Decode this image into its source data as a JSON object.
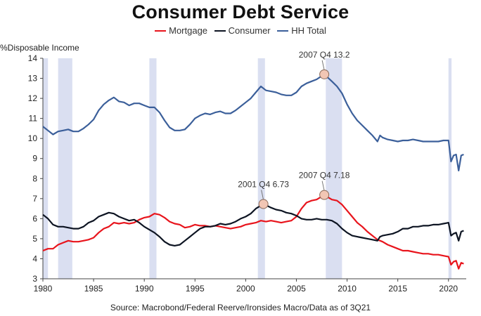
{
  "chart_data": {
    "type": "line",
    "title": "Consumer Debt Service",
    "ylabel": "%Disposable Income",
    "xlim": [
      1980,
      2021.75
    ],
    "ylim": [
      3,
      14
    ],
    "y_ticks": [
      3,
      4,
      5,
      6,
      7,
      8,
      9,
      10,
      11,
      12,
      13,
      14
    ],
    "x_ticks": [
      1980,
      1985,
      1990,
      1995,
      2000,
      2005,
      2010,
      2015,
      2020
    ],
    "grid": false,
    "legend_position": "top-center",
    "source": "Source: Macrobond/Federal Reerve/Ironsides Macro/Data as of 3Q21",
    "recessions": [
      [
        1980.0,
        1980.5
      ],
      [
        1981.5,
        1982.9
      ],
      [
        1990.5,
        1991.2
      ],
      [
        2001.2,
        2001.9
      ],
      [
        2007.9,
        2009.5
      ],
      [
        2020.0,
        2020.3
      ]
    ],
    "series": [
      {
        "name": "Mortgage",
        "color": "#e8141c",
        "points": [
          [
            1980,
            4.4
          ],
          [
            1980.5,
            4.5
          ],
          [
            1981,
            4.5
          ],
          [
            1981.5,
            4.7
          ],
          [
            1982,
            4.8
          ],
          [
            1982.5,
            4.9
          ],
          [
            1983,
            4.85
          ],
          [
            1983.5,
            4.85
          ],
          [
            1984,
            4.9
          ],
          [
            1984.5,
            4.95
          ],
          [
            1985,
            5.05
          ],
          [
            1985.5,
            5.3
          ],
          [
            1986,
            5.5
          ],
          [
            1986.5,
            5.6
          ],
          [
            1987,
            5.8
          ],
          [
            1987.5,
            5.75
          ],
          [
            1988,
            5.8
          ],
          [
            1988.5,
            5.75
          ],
          [
            1989,
            5.8
          ],
          [
            1989.5,
            5.95
          ],
          [
            1990,
            6.05
          ],
          [
            1990.5,
            6.1
          ],
          [
            1991,
            6.25
          ],
          [
            1991.5,
            6.2
          ],
          [
            1992,
            6.05
          ],
          [
            1992.5,
            5.85
          ],
          [
            1993,
            5.75
          ],
          [
            1993.5,
            5.7
          ],
          [
            1994,
            5.55
          ],
          [
            1994.5,
            5.6
          ],
          [
            1995,
            5.7
          ],
          [
            1995.5,
            5.65
          ],
          [
            1996,
            5.65
          ],
          [
            1996.5,
            5.6
          ],
          [
            1997,
            5.65
          ],
          [
            1997.5,
            5.6
          ],
          [
            1998,
            5.55
          ],
          [
            1998.5,
            5.5
          ],
          [
            1999,
            5.55
          ],
          [
            1999.5,
            5.6
          ],
          [
            2000,
            5.7
          ],
          [
            2000.5,
            5.75
          ],
          [
            2001,
            5.8
          ],
          [
            2001.5,
            5.9
          ],
          [
            2002,
            5.85
          ],
          [
            2002.5,
            5.9
          ],
          [
            2003,
            5.85
          ],
          [
            2003.5,
            5.8
          ],
          [
            2004,
            5.85
          ],
          [
            2004.5,
            5.9
          ],
          [
            2005,
            6.1
          ],
          [
            2005.5,
            6.5
          ],
          [
            2006,
            6.8
          ],
          [
            2006.5,
            6.9
          ],
          [
            2007,
            6.95
          ],
          [
            2007.75,
            7.18
          ],
          [
            2008.5,
            6.95
          ],
          [
            2009,
            6.9
          ],
          [
            2009.5,
            6.7
          ],
          [
            2010,
            6.4
          ],
          [
            2010.5,
            6.1
          ],
          [
            2011,
            5.8
          ],
          [
            2011.5,
            5.6
          ],
          [
            2012,
            5.35
          ],
          [
            2012.5,
            5.15
          ],
          [
            2013,
            4.95
          ],
          [
            2013.5,
            4.85
          ],
          [
            2014,
            4.7
          ],
          [
            2014.5,
            4.6
          ],
          [
            2015,
            4.5
          ],
          [
            2015.5,
            4.4
          ],
          [
            2016,
            4.4
          ],
          [
            2016.5,
            4.35
          ],
          [
            2017,
            4.3
          ],
          [
            2017.5,
            4.25
          ],
          [
            2018,
            4.25
          ],
          [
            2018.5,
            4.2
          ],
          [
            2019,
            4.2
          ],
          [
            2019.5,
            4.15
          ],
          [
            2020,
            4.1
          ],
          [
            2020.25,
            3.7
          ],
          [
            2020.5,
            3.85
          ],
          [
            2020.75,
            3.9
          ],
          [
            2021,
            3.5
          ],
          [
            2021.25,
            3.8
          ],
          [
            2021.5,
            3.75
          ]
        ]
      },
      {
        "name": "Consumer",
        "color": "#0d1422",
        "points": [
          [
            1980,
            6.2
          ],
          [
            1980.5,
            6.0
          ],
          [
            1981,
            5.7
          ],
          [
            1981.5,
            5.6
          ],
          [
            1982,
            5.6
          ],
          [
            1982.5,
            5.55
          ],
          [
            1983,
            5.5
          ],
          [
            1983.5,
            5.5
          ],
          [
            1984,
            5.6
          ],
          [
            1984.5,
            5.8
          ],
          [
            1985,
            5.9
          ],
          [
            1985.5,
            6.1
          ],
          [
            1986,
            6.2
          ],
          [
            1986.5,
            6.3
          ],
          [
            1987,
            6.25
          ],
          [
            1987.5,
            6.1
          ],
          [
            1988,
            6.0
          ],
          [
            1988.5,
            5.9
          ],
          [
            1989,
            5.95
          ],
          [
            1989.5,
            5.8
          ],
          [
            1990,
            5.6
          ],
          [
            1990.5,
            5.45
          ],
          [
            1991,
            5.3
          ],
          [
            1991.5,
            5.1
          ],
          [
            1992,
            4.85
          ],
          [
            1992.5,
            4.7
          ],
          [
            1993,
            4.65
          ],
          [
            1993.5,
            4.7
          ],
          [
            1994,
            4.9
          ],
          [
            1994.5,
            5.1
          ],
          [
            1995,
            5.3
          ],
          [
            1995.5,
            5.5
          ],
          [
            1996,
            5.6
          ],
          [
            1996.5,
            5.6
          ],
          [
            1997,
            5.65
          ],
          [
            1997.5,
            5.75
          ],
          [
            1998,
            5.7
          ],
          [
            1998.5,
            5.75
          ],
          [
            1999,
            5.85
          ],
          [
            1999.5,
            6.0
          ],
          [
            2000,
            6.1
          ],
          [
            2000.5,
            6.25
          ],
          [
            2001,
            6.5
          ],
          [
            2001.75,
            6.73
          ],
          [
            2002.5,
            6.55
          ],
          [
            2003,
            6.45
          ],
          [
            2003.5,
            6.4
          ],
          [
            2004,
            6.3
          ],
          [
            2004.5,
            6.25
          ],
          [
            2005,
            6.15
          ],
          [
            2005.5,
            6.0
          ],
          [
            2006,
            5.95
          ],
          [
            2006.5,
            5.95
          ],
          [
            2007,
            6.0
          ],
          [
            2007.5,
            5.95
          ],
          [
            2008,
            5.95
          ],
          [
            2008.5,
            5.9
          ],
          [
            2009,
            5.75
          ],
          [
            2009.5,
            5.5
          ],
          [
            2010,
            5.3
          ],
          [
            2010.5,
            5.15
          ],
          [
            2011,
            5.1
          ],
          [
            2011.5,
            5.05
          ],
          [
            2012,
            5.0
          ],
          [
            2012.5,
            4.95
          ],
          [
            2013,
            4.9
          ],
          [
            2013.25,
            5.1
          ],
          [
            2013.5,
            5.15
          ],
          [
            2014,
            5.2
          ],
          [
            2014.5,
            5.25
          ],
          [
            2015,
            5.35
          ],
          [
            2015.5,
            5.5
          ],
          [
            2016,
            5.5
          ],
          [
            2016.5,
            5.6
          ],
          [
            2017,
            5.6
          ],
          [
            2017.5,
            5.65
          ],
          [
            2018,
            5.65
          ],
          [
            2018.5,
            5.7
          ],
          [
            2019,
            5.7
          ],
          [
            2019.5,
            5.75
          ],
          [
            2020,
            5.8
          ],
          [
            2020.25,
            5.15
          ],
          [
            2020.5,
            5.25
          ],
          [
            2020.75,
            5.3
          ],
          [
            2021,
            4.9
          ],
          [
            2021.25,
            5.35
          ],
          [
            2021.5,
            5.4
          ]
        ]
      },
      {
        "name": "HH Total",
        "color": "#3b5f9a",
        "points": [
          [
            1980,
            10.6
          ],
          [
            1980.5,
            10.4
          ],
          [
            1981,
            10.2
          ],
          [
            1981.5,
            10.35
          ],
          [
            1982,
            10.4
          ],
          [
            1982.5,
            10.45
          ],
          [
            1983,
            10.35
          ],
          [
            1983.5,
            10.35
          ],
          [
            1984,
            10.5
          ],
          [
            1984.5,
            10.7
          ],
          [
            1985,
            10.95
          ],
          [
            1985.5,
            11.4
          ],
          [
            1986,
            11.7
          ],
          [
            1986.5,
            11.9
          ],
          [
            1987,
            12.05
          ],
          [
            1987.5,
            11.85
          ],
          [
            1988,
            11.8
          ],
          [
            1988.5,
            11.65
          ],
          [
            1989,
            11.75
          ],
          [
            1989.5,
            11.75
          ],
          [
            1990,
            11.65
          ],
          [
            1990.5,
            11.55
          ],
          [
            1991,
            11.55
          ],
          [
            1991.5,
            11.3
          ],
          [
            1992,
            10.9
          ],
          [
            1992.5,
            10.55
          ],
          [
            1993,
            10.4
          ],
          [
            1993.5,
            10.4
          ],
          [
            1994,
            10.45
          ],
          [
            1994.5,
            10.7
          ],
          [
            1995,
            11.0
          ],
          [
            1995.5,
            11.15
          ],
          [
            1996,
            11.25
          ],
          [
            1996.5,
            11.2
          ],
          [
            1997,
            11.3
          ],
          [
            1997.5,
            11.35
          ],
          [
            1998,
            11.25
          ],
          [
            1998.5,
            11.25
          ],
          [
            1999,
            11.4
          ],
          [
            1999.5,
            11.6
          ],
          [
            2000,
            11.8
          ],
          [
            2000.5,
            12.0
          ],
          [
            2001,
            12.3
          ],
          [
            2001.5,
            12.6
          ],
          [
            2002,
            12.4
          ],
          [
            2002.5,
            12.35
          ],
          [
            2003,
            12.3
          ],
          [
            2003.5,
            12.2
          ],
          [
            2004,
            12.15
          ],
          [
            2004.5,
            12.15
          ],
          [
            2005,
            12.3
          ],
          [
            2005.5,
            12.6
          ],
          [
            2006,
            12.75
          ],
          [
            2006.5,
            12.85
          ],
          [
            2007,
            12.95
          ],
          [
            2007.75,
            13.2
          ],
          [
            2008.5,
            12.85
          ],
          [
            2009,
            12.6
          ],
          [
            2009.5,
            12.25
          ],
          [
            2010,
            11.7
          ],
          [
            2010.5,
            11.25
          ],
          [
            2011,
            10.9
          ],
          [
            2011.5,
            10.65
          ],
          [
            2012,
            10.4
          ],
          [
            2012.5,
            10.15
          ],
          [
            2013,
            9.85
          ],
          [
            2013.25,
            10.15
          ],
          [
            2013.5,
            10.05
          ],
          [
            2014,
            9.95
          ],
          [
            2014.5,
            9.9
          ],
          [
            2015,
            9.85
          ],
          [
            2015.5,
            9.9
          ],
          [
            2016,
            9.9
          ],
          [
            2016.5,
            9.95
          ],
          [
            2017,
            9.9
          ],
          [
            2017.5,
            9.85
          ],
          [
            2018,
            9.85
          ],
          [
            2018.5,
            9.85
          ],
          [
            2019,
            9.85
          ],
          [
            2019.5,
            9.9
          ],
          [
            2020,
            9.9
          ],
          [
            2020.25,
            8.85
          ],
          [
            2020.5,
            9.15
          ],
          [
            2020.75,
            9.2
          ],
          [
            2021,
            8.4
          ],
          [
            2021.25,
            9.15
          ],
          [
            2021.5,
            9.2
          ]
        ]
      }
    ],
    "annotations": [
      {
        "series": "HH Total",
        "x": 2007.75,
        "y": 13.2,
        "label": "2007 Q4 13.2"
      },
      {
        "series": "Mortgage",
        "x": 2007.75,
        "y": 7.18,
        "label": "2007 Q4 7.18"
      },
      {
        "series": "Consumer",
        "x": 2001.75,
        "y": 6.73,
        "label": "2001 Q4 6.73"
      }
    ]
  }
}
